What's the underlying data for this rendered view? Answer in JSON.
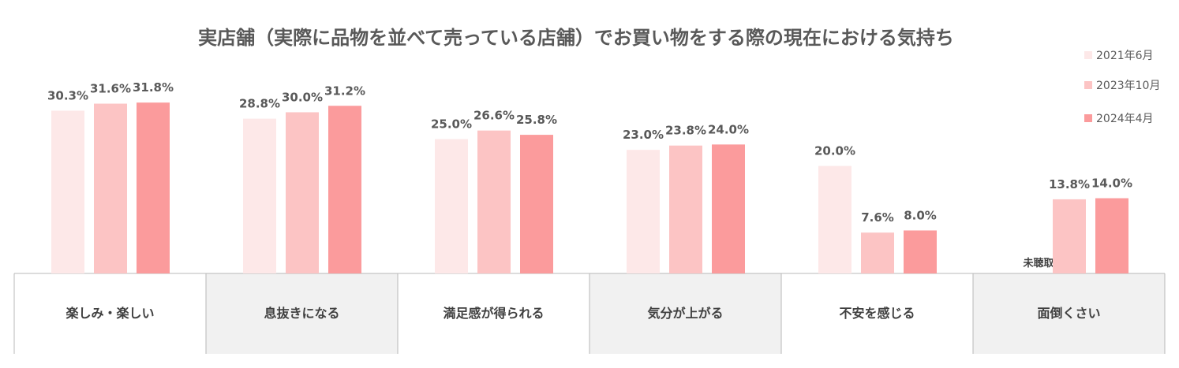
{
  "chart_data": {
    "type": "bar",
    "title": "実店舗（実際に品物を並べて売っている店舗）でお買い物をする際の現在における気持ち",
    "categories": [
      "楽しみ・楽しい",
      "息抜きになる",
      "満足感が得られる",
      "気分が上がる",
      "不安を感じる",
      "面倒くさい"
    ],
    "series": [
      {
        "name": "2021年6月",
        "color": "#fde8e8",
        "values": [
          30.3,
          28.8,
          25.0,
          23.0,
          20.0,
          null
        ],
        "labels": [
          "30.3%",
          "28.8%",
          "25.0%",
          "23.0%",
          "20.0%",
          ""
        ]
      },
      {
        "name": "2023年10月",
        "color": "#fcc4c4",
        "values": [
          31.6,
          30.0,
          26.6,
          23.8,
          7.6,
          13.8
        ],
        "labels": [
          "31.6%",
          "30.0%",
          "26.6%",
          "23.8%",
          "7.6%",
          "13.8%"
        ]
      },
      {
        "name": "2024年4月",
        "color": "#fb9b9c",
        "values": [
          31.8,
          31.2,
          25.8,
          24.0,
          8.0,
          14.0
        ],
        "labels": [
          "31.8%",
          "31.2%",
          "25.8%",
          "24.0%",
          "8.0%",
          "14.0%"
        ]
      }
    ],
    "missing_label": "未聴取",
    "ylim": [
      0,
      33
    ],
    "legend_position": "top-right",
    "grid": false,
    "category_table": {
      "shaded_fill": "#f1f1f1",
      "border": "#b8b8b8"
    }
  }
}
